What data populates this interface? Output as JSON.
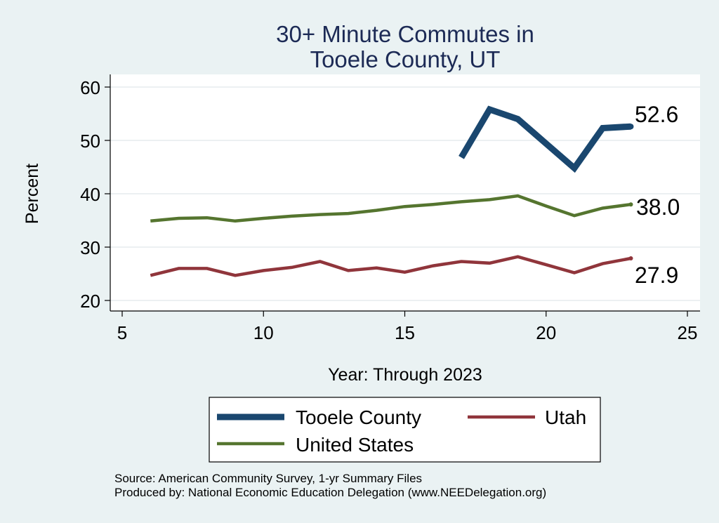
{
  "chart_data": {
    "type": "line",
    "title": [
      "30+ Minute Commutes in",
      "Tooele County, UT"
    ],
    "xlabel": "Year: Through 2023",
    "ylabel": "Percent",
    "xlim": [
      5,
      25
    ],
    "ylim": [
      20,
      60
    ],
    "x_ticks": [
      5,
      10,
      15,
      20,
      25
    ],
    "y_ticks": [
      20,
      30,
      40,
      50,
      60
    ],
    "grid": true,
    "legend_position": "bottom",
    "series": [
      {
        "name": "Tooele County",
        "color": "#1a476f",
        "x": [
          17,
          18,
          19,
          20,
          21,
          22,
          23
        ],
        "values": [
          46.8,
          55.8,
          54.0,
          49.4,
          44.8,
          52.3,
          52.6
        ],
        "end_label": "52.6"
      },
      {
        "name": "Utah",
        "color": "#90353b",
        "x": [
          6,
          7,
          8,
          9,
          10,
          11,
          12,
          13,
          14,
          15,
          16,
          17,
          18,
          19,
          20,
          21,
          22,
          23
        ],
        "values": [
          24.7,
          26.0,
          26.0,
          24.7,
          25.6,
          26.2,
          27.3,
          25.6,
          26.1,
          25.3,
          26.5,
          27.3,
          27.0,
          28.2,
          26.7,
          25.2,
          26.9,
          27.9
        ],
        "end_label": "27.9"
      },
      {
        "name": "United States",
        "color": "#55752f",
        "x": [
          6,
          7,
          8,
          9,
          10,
          11,
          12,
          13,
          14,
          15,
          16,
          17,
          18,
          19,
          20,
          21,
          22,
          23
        ],
        "values": [
          34.9,
          35.4,
          35.5,
          34.9,
          35.4,
          35.8,
          36.1,
          36.3,
          36.9,
          37.6,
          38.0,
          38.5,
          38.9,
          39.6,
          37.7,
          35.9,
          37.3,
          38.0
        ],
        "end_label": "38.0"
      }
    ]
  },
  "source_lines": [
    "Source: American Community Survey, 1-yr Summary Files",
    "Produced by: National Economic Education Delegation (www.NEEDelegation.org)"
  ]
}
